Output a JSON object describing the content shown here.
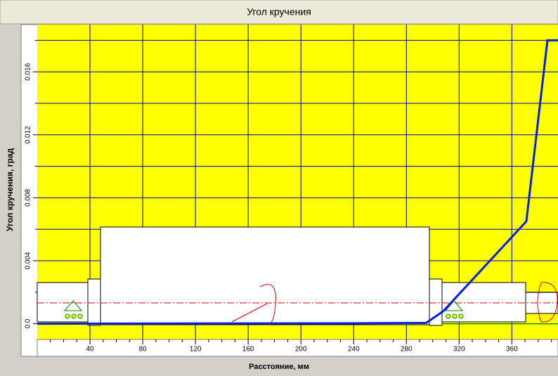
{
  "chart_data": {
    "type": "line",
    "title": "Угол кручения",
    "x_label": "Расстояние, мм",
    "y_label": "Угол кручения, град",
    "x": [
      0,
      250,
      295,
      308,
      371,
      387,
      395
    ],
    "series": [
      {
        "name": "Угол кручения",
        "color": "#0022dd",
        "values": [
          0,
          3e-05,
          5e-05,
          0.0008,
          0.0065,
          0.018,
          0.018
        ]
      }
    ],
    "xlim": [
      0,
      395
    ],
    "ylim": [
      -0.001,
      0.019
    ],
    "xticks": [
      40,
      80,
      120,
      160,
      200,
      240,
      280,
      320,
      360
    ],
    "x_minor_ticks": [
      10,
      20,
      30,
      50,
      60,
      70,
      90,
      100,
      110,
      130,
      140,
      150,
      170,
      180,
      190,
      210,
      220,
      230,
      250,
      260,
      270,
      290,
      300,
      310,
      330,
      340,
      350,
      370,
      380,
      390
    ],
    "yticks": [
      {
        "value": 0,
        "label": "0.0"
      },
      0.004,
      0.008,
      0.012,
      0.016
    ],
    "y_minor_ticks": [
      0.002,
      0.006,
      0.01,
      0.014,
      0.018
    ],
    "grid": true,
    "background": "#ffff00",
    "grid_color": "#0000aa"
  }
}
